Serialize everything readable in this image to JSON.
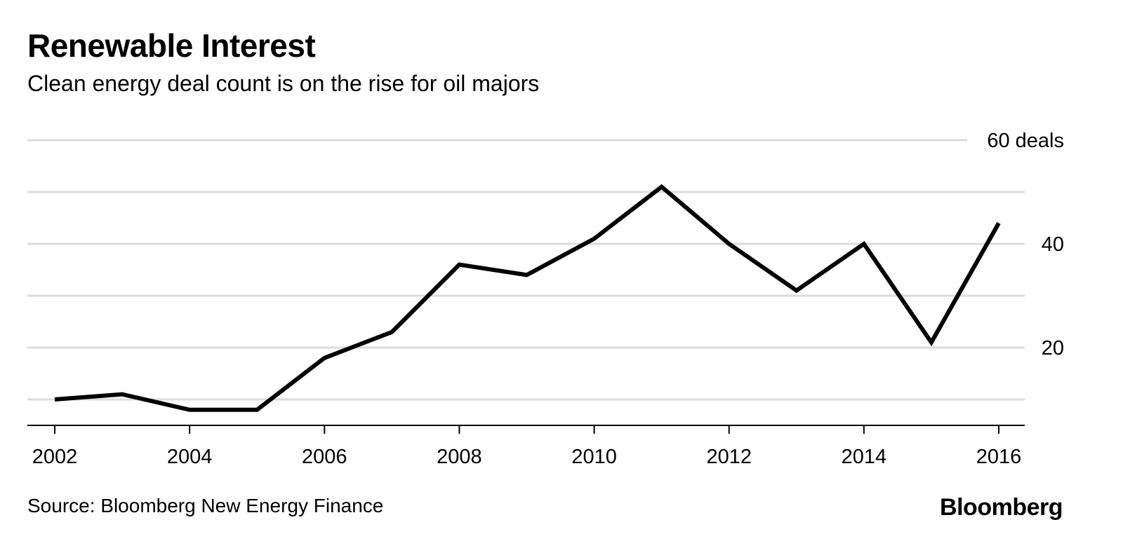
{
  "title": "Renewable Interest",
  "subtitle": "Clean energy deal count is on the rise for oil majors",
  "source": "Source: Bloomberg New Energy Finance",
  "brand": "Bloomberg",
  "colors": {
    "line": "#000000",
    "grid": "#dcdcdc",
    "axis": "#000000"
  },
  "chart_data": {
    "type": "line",
    "title": "Renewable Interest",
    "subtitle": "Clean energy deal count is on the rise for oil majors",
    "x": [
      2002,
      2003,
      2004,
      2005,
      2006,
      2007,
      2008,
      2009,
      2010,
      2011,
      2012,
      2013,
      2014,
      2015,
      2016
    ],
    "series": [
      {
        "values": [
          10,
          11,
          8,
          8,
          18,
          23,
          36,
          34,
          41,
          51,
          40,
          31,
          40,
          21,
          44
        ]
      }
    ],
    "ylim": [
      5,
      60
    ],
    "y_gridlines": [
      10,
      20,
      30,
      40,
      50,
      60
    ],
    "y_ticks": [
      {
        "value": 20,
        "label": "20"
      },
      {
        "value": 40,
        "label": "40"
      },
      {
        "value": 60,
        "label": "60 deals"
      }
    ],
    "x_ticks": [
      {
        "value": 2002,
        "label": "2002"
      },
      {
        "value": 2004,
        "label": "2004"
      },
      {
        "value": 2006,
        "label": "2006"
      },
      {
        "value": 2008,
        "label": "2008"
      },
      {
        "value": 2010,
        "label": "2010"
      },
      {
        "value": 2012,
        "label": "2012"
      },
      {
        "value": 2014,
        "label": "2014"
      },
      {
        "value": 2016,
        "label": "2016"
      }
    ],
    "y_axis_position": "right",
    "grid": true,
    "legend": "none"
  }
}
